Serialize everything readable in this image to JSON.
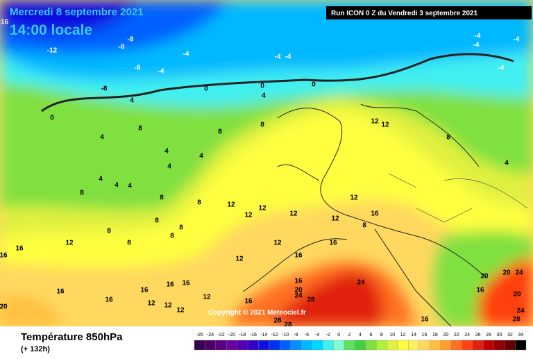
{
  "header": {
    "date": "Mercredi 8 septembre 2021",
    "time": "14:00 locale",
    "run": "Run ICON 0 Z du Vendredi 3 septembre 2021"
  },
  "footer": {
    "title": "Température 850hPa",
    "lead": "(+ 132h)",
    "copyright": "Copyright © 2021 Meteociel.fr"
  },
  "legend": {
    "values": [
      -26,
      -24,
      -22,
      -20,
      -18,
      -16,
      -14,
      -12,
      -10,
      -8,
      -6,
      -4,
      -2,
      0,
      2,
      4,
      6,
      8,
      10,
      12,
      14,
      16,
      18,
      20,
      22,
      24,
      26,
      28,
      30,
      32,
      34
    ],
    "colors": [
      "#3a0050",
      "#4b0068",
      "#5a007f",
      "#6a00a0",
      "#5000b0",
      "#3000c8",
      "#1010e0",
      "#0030f0",
      "#0060ff",
      "#0090ff",
      "#00b8ff",
      "#00d8ff",
      "#40f0f0",
      "#80ffd0",
      "#60e060",
      "#40d040",
      "#80e040",
      "#b0f040",
      "#e0f040",
      "#ffff40",
      "#fff060",
      "#ffd860",
      "#ffc040",
      "#ffa030",
      "#ff7020",
      "#ff4010",
      "#e02010",
      "#c00000",
      "#900000",
      "#600000",
      "#000000"
    ]
  },
  "map": {
    "labels": [
      "-16",
      "-12",
      "-8",
      "-8",
      "-8",
      "-4",
      "-4",
      "-4",
      "-4",
      "-4",
      "-4",
      "-4",
      "-4",
      "-8",
      "0",
      "0",
      "0",
      "4",
      "4",
      "0",
      "4",
      "8",
      "8",
      "8",
      "12",
      "12",
      "8",
      "4",
      "4",
      "4",
      "4",
      "8",
      "4",
      "4",
      "4",
      "8",
      "8",
      "12",
      "12",
      "12",
      "12",
      "12",
      "16",
      "12",
      "8",
      "8",
      "8",
      "8",
      "12",
      "16",
      "16",
      "8",
      "8",
      "12",
      "12",
      "16",
      "16",
      "16",
      "16",
      "16",
      "16",
      "12",
      "16",
      "12",
      "12",
      "12",
      "16",
      "24",
      "20",
      "24",
      "28",
      "20",
      "16",
      "16",
      "28",
      "28",
      "20",
      "20",
      "24",
      "16",
      "20",
      "28",
      "24"
    ]
  }
}
